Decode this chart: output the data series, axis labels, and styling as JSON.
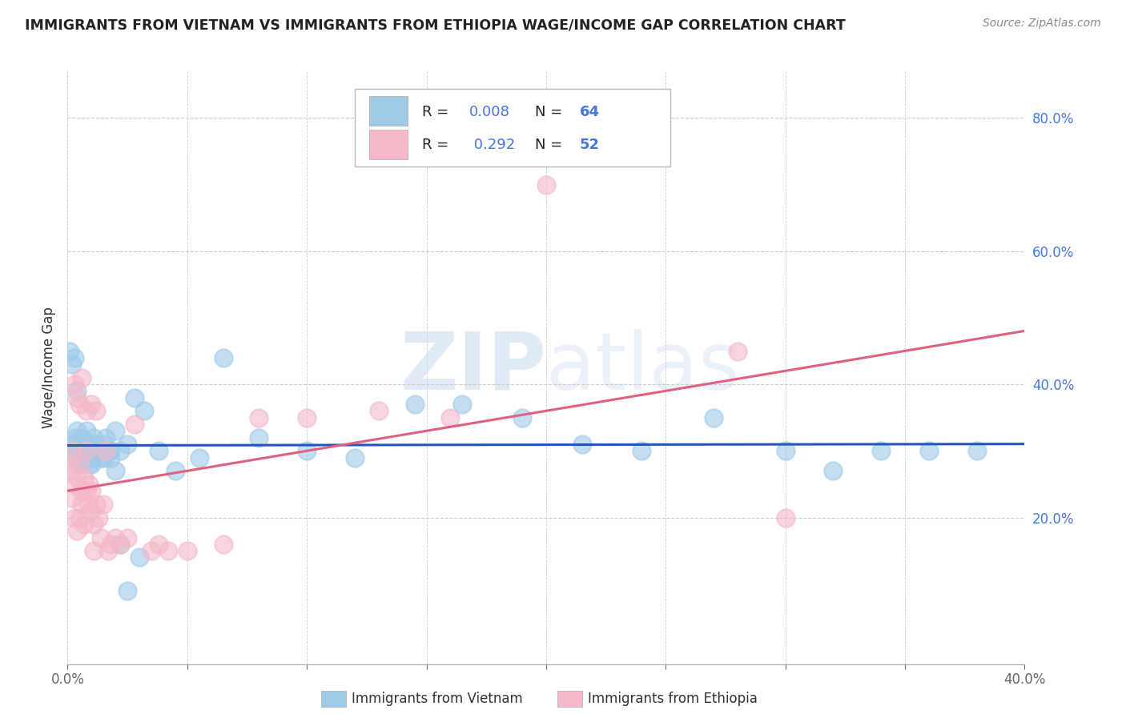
{
  "title": "IMMIGRANTS FROM VIETNAM VS IMMIGRANTS FROM ETHIOPIA WAGE/INCOME GAP CORRELATION CHART",
  "source": "Source: ZipAtlas.com",
  "ylabel": "Wage/Income Gap",
  "xlim": [
    0.0,
    0.4
  ],
  "ylim": [
    -0.02,
    0.87
  ],
  "ytick_labels": [
    "20.0%",
    "40.0%",
    "60.0%",
    "80.0%"
  ],
  "ytick_values": [
    0.2,
    0.4,
    0.6,
    0.8
  ],
  "xtick_values": [
    0.0,
    0.05,
    0.1,
    0.15,
    0.2,
    0.25,
    0.3,
    0.35,
    0.4
  ],
  "xtick_labels": [
    "0.0%",
    "",
    "",
    "",
    "",
    "",
    "",
    "",
    "40.0%"
  ],
  "vietnam_color": "#9ecae8",
  "ethiopia_color": "#f4b8c8",
  "vietnam_line_color": "#2255bb",
  "ethiopia_line_color": "#e06080",
  "vietnam_R": 0.008,
  "vietnam_N": 64,
  "ethiopia_R": 0.292,
  "ethiopia_N": 52,
  "legend_label_vietnam": "Immigrants from Vietnam",
  "legend_label_ethiopia": "Immigrants from Ethiopia",
  "watermark_zip": "ZIP",
  "watermark_atlas": "atlas",
  "background_color": "#ffffff",
  "grid_color": "#cccccc",
  "r_text_color": "#4477dd",
  "n_text_color": "#4477dd",
  "label_text_color": "#222222",
  "vietnam_x": [
    0.001,
    0.002,
    0.003,
    0.003,
    0.004,
    0.004,
    0.005,
    0.005,
    0.006,
    0.006,
    0.007,
    0.007,
    0.008,
    0.008,
    0.009,
    0.009,
    0.01,
    0.01,
    0.011,
    0.011,
    0.012,
    0.013,
    0.014,
    0.015,
    0.016,
    0.017,
    0.018,
    0.02,
    0.022,
    0.025,
    0.028,
    0.032,
    0.038,
    0.045,
    0.055,
    0.065,
    0.08,
    0.1,
    0.12,
    0.145,
    0.165,
    0.19,
    0.215,
    0.24,
    0.27,
    0.3,
    0.32,
    0.34,
    0.36,
    0.38,
    0.001,
    0.002,
    0.003,
    0.004,
    0.006,
    0.008,
    0.01,
    0.012,
    0.015,
    0.018,
    0.022,
    0.03,
    0.02,
    0.025
  ],
  "vietnam_y": [
    0.3,
    0.31,
    0.29,
    0.32,
    0.31,
    0.33,
    0.3,
    0.28,
    0.32,
    0.3,
    0.29,
    0.31,
    0.3,
    0.33,
    0.28,
    0.3,
    0.29,
    0.31,
    0.3,
    0.32,
    0.31,
    0.3,
    0.29,
    0.31,
    0.32,
    0.3,
    0.29,
    0.33,
    0.3,
    0.31,
    0.38,
    0.36,
    0.3,
    0.27,
    0.29,
    0.44,
    0.32,
    0.3,
    0.29,
    0.37,
    0.37,
    0.35,
    0.31,
    0.3,
    0.35,
    0.3,
    0.27,
    0.3,
    0.3,
    0.3,
    0.45,
    0.43,
    0.44,
    0.39,
    0.3,
    0.29,
    0.28,
    0.3,
    0.29,
    0.3,
    0.16,
    0.14,
    0.27,
    0.09
  ],
  "ethiopia_x": [
    0.001,
    0.002,
    0.003,
    0.003,
    0.004,
    0.004,
    0.005,
    0.005,
    0.006,
    0.006,
    0.007,
    0.007,
    0.008,
    0.008,
    0.009,
    0.009,
    0.01,
    0.01,
    0.011,
    0.011,
    0.012,
    0.013,
    0.014,
    0.015,
    0.016,
    0.017,
    0.018,
    0.02,
    0.022,
    0.025,
    0.028,
    0.035,
    0.038,
    0.042,
    0.05,
    0.065,
    0.08,
    0.1,
    0.13,
    0.16,
    0.2,
    0.001,
    0.002,
    0.003,
    0.004,
    0.005,
    0.006,
    0.008,
    0.01,
    0.012,
    0.28,
    0.3
  ],
  "ethiopia_y": [
    0.27,
    0.23,
    0.2,
    0.25,
    0.18,
    0.26,
    0.2,
    0.28,
    0.24,
    0.22,
    0.26,
    0.19,
    0.3,
    0.24,
    0.22,
    0.25,
    0.21,
    0.24,
    0.15,
    0.19,
    0.22,
    0.2,
    0.17,
    0.22,
    0.3,
    0.15,
    0.16,
    0.17,
    0.16,
    0.17,
    0.34,
    0.15,
    0.16,
    0.15,
    0.15,
    0.16,
    0.35,
    0.35,
    0.36,
    0.35,
    0.7,
    0.28,
    0.3,
    0.4,
    0.38,
    0.37,
    0.41,
    0.36,
    0.37,
    0.36,
    0.45,
    0.2
  ]
}
